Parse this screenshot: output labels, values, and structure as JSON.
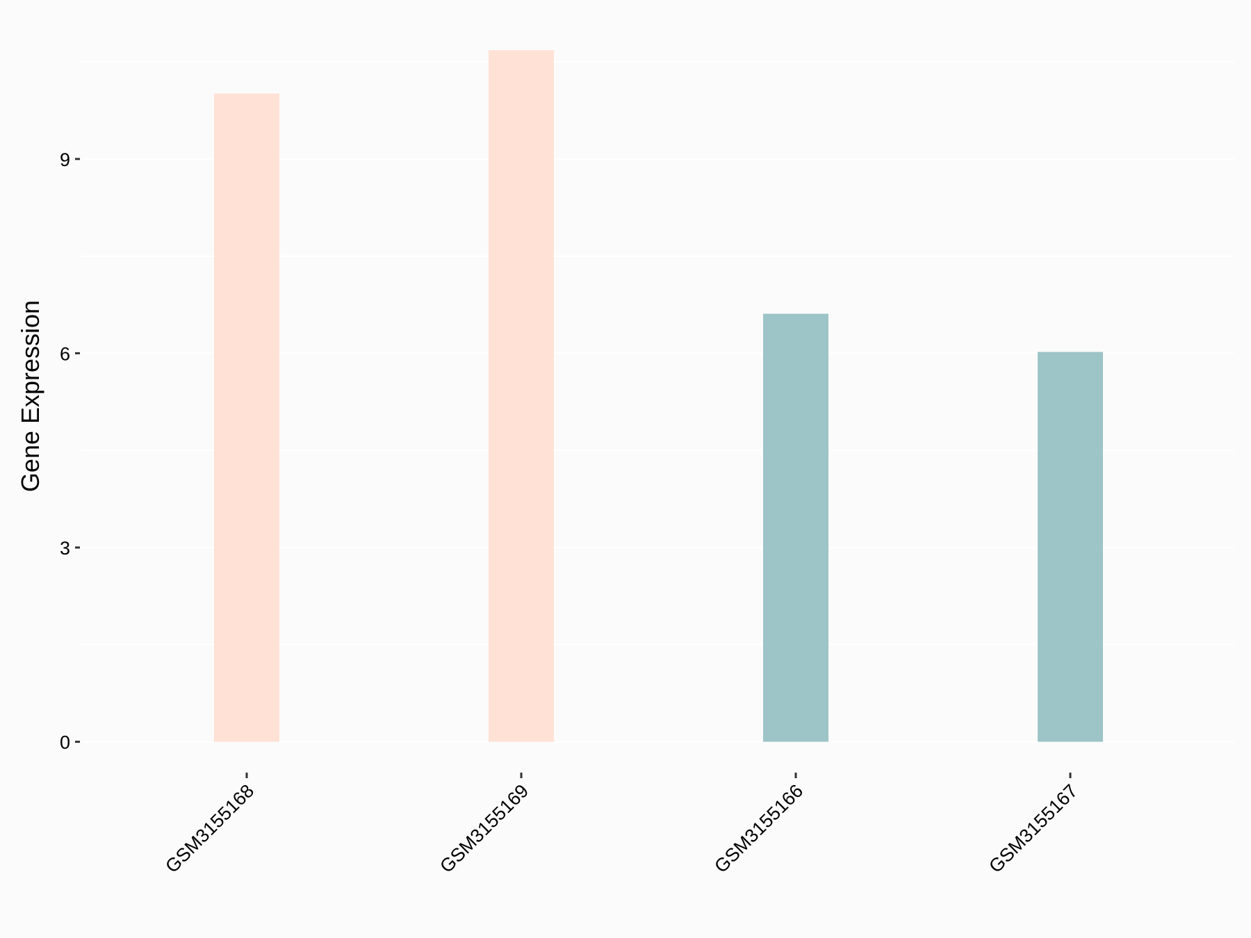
{
  "chart_data": {
    "type": "bar",
    "title": "",
    "xlabel": "",
    "ylabel": "Gene Expression",
    "categories": [
      "GSM3155168",
      "GSM3155169",
      "GSM3155166",
      "GSM3155167"
    ],
    "values": [
      10.01,
      10.68,
      6.61,
      6.02
    ],
    "bar_colors": [
      "#ffe1d6",
      "#ffe1d6",
      "#9dc4c7",
      "#9dc4c7"
    ],
    "yticks": [
      0,
      3,
      6,
      9
    ],
    "ylim": [
      -0.38,
      10.9
    ],
    "grid": "horizontal, faint white lines",
    "legend": "none",
    "background": "#fbfbfb"
  }
}
